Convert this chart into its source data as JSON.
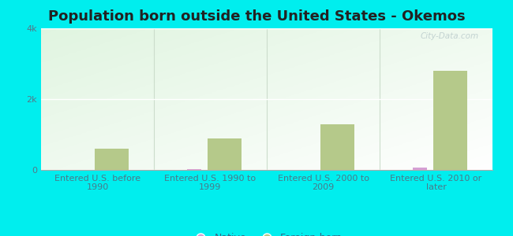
{
  "title": "Population born outside the United States - Okemos",
  "categories": [
    "Entered U.S. before\n1990",
    "Entered U.S. 1990 to\n1999",
    "Entered U.S. 2000 to\n2009",
    "Entered U.S. 2010 or\nlater"
  ],
  "native_values": [
    5,
    30,
    8,
    60
  ],
  "foreign_values": [
    600,
    900,
    1300,
    2800
  ],
  "native_color": "#d4a0d4",
  "foreign_color": "#b5c98a",
  "background_color": "#00eeee",
  "plot_bg_color": "#e8f5e0",
  "ylim": [
    0,
    4000
  ],
  "yticks": [
    0,
    2000,
    4000
  ],
  "ytick_labels": [
    "0",
    "2k",
    "4k"
  ],
  "bar_width": 0.25,
  "title_fontsize": 13,
  "tick_fontsize": 8,
  "legend_fontsize": 9,
  "watermark": "City-Data.com"
}
